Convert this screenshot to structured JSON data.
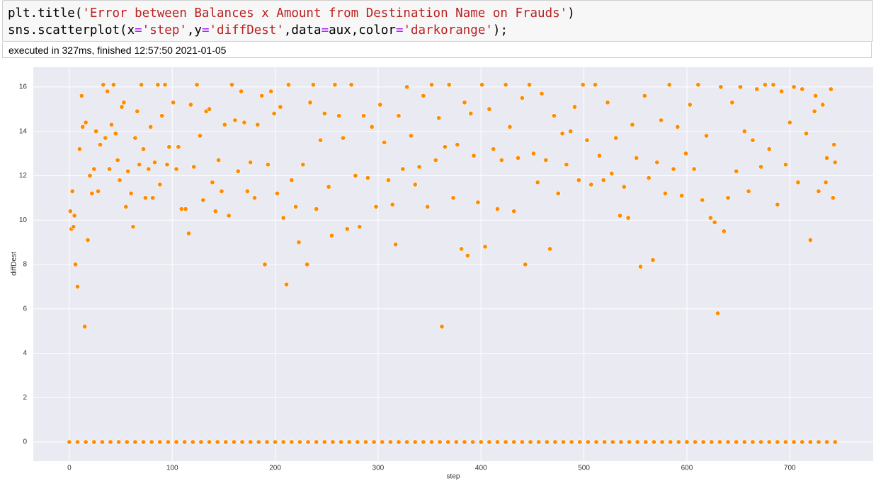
{
  "code": {
    "lines": [
      [
        "plt.title(",
        "'Error between Balances x Amount from Destination Name on Frauds'",
        ")"
      ],
      [
        "sns.scatterplot(x",
        "=",
        "'step'",
        ",y",
        "=",
        "'diffDest'",
        ",data",
        "=",
        "aux,color",
        "=",
        "'darkorange'",
        ");"
      ]
    ]
  },
  "execution": "executed in 327ms, finished 12:57:50 2021-01-05",
  "chart_data": {
    "type": "scatter",
    "x_label": "step",
    "y_label": "diffDest",
    "color": "#ff8c00",
    "grid": true,
    "xlim": [
      -35,
      781
    ],
    "ylim": [
      -0.86,
      16.89
    ],
    "xticks": [
      0,
      100,
      200,
      300,
      400,
      500,
      600,
      700
    ],
    "yticks": [
      0,
      2,
      4,
      6,
      8,
      10,
      12,
      14,
      16
    ],
    "x": [
      1,
      2,
      3,
      4,
      5,
      6,
      8,
      10,
      12,
      13,
      15,
      16,
      18,
      20,
      22,
      24,
      26,
      28,
      30,
      33,
      35,
      37,
      39,
      41,
      43,
      45,
      47,
      49,
      51,
      53,
      55,
      57,
      60,
      62,
      64,
      66,
      68,
      70,
      72,
      74,
      77,
      79,
      81,
      83,
      86,
      88,
      90,
      93,
      95,
      97,
      101,
      104,
      106,
      109,
      113,
      116,
      118,
      121,
      124,
      127,
      130,
      133,
      136,
      139,
      142,
      145,
      148,
      151,
      155,
      158,
      161,
      164,
      167,
      170,
      173,
      176,
      180,
      183,
      187,
      190,
      193,
      196,
      199,
      202,
      205,
      208,
      211,
      213,
      216,
      220,
      223,
      227,
      231,
      234,
      237,
      240,
      244,
      248,
      252,
      255,
      258,
      262,
      266,
      270,
      274,
      278,
      282,
      286,
      290,
      294,
      298,
      302,
      306,
      310,
      314,
      317,
      320,
      324,
      328,
      332,
      336,
      340,
      344,
      348,
      352,
      356,
      359,
      362,
      365,
      369,
      373,
      377,
      381,
      384,
      387,
      390,
      393,
      397,
      401,
      404,
      408,
      412,
      416,
      420,
      424,
      428,
      432,
      436,
      440,
      443,
      447,
      451,
      455,
      459,
      463,
      467,
      471,
      475,
      479,
      483,
      487,
      491,
      495,
      499,
      503,
      507,
      511,
      515,
      519,
      523,
      527,
      531,
      535,
      539,
      543,
      547,
      551,
      555,
      559,
      563,
      567,
      571,
      575,
      579,
      583,
      587,
      591,
      595,
      599,
      603,
      607,
      611,
      615,
      619,
      623,
      627,
      630,
      633,
      636,
      640,
      644,
      648,
      652,
      656,
      660,
      664,
      668,
      672,
      676,
      680,
      684,
      688,
      692,
      696,
      700,
      704,
      708,
      712,
      716,
      720,
      724,
      728,
      732,
      736,
      740,
      742,
      743,
      744,
      725,
      735,
      0,
      8,
      16,
      24,
      32,
      40,
      48,
      56,
      64,
      72,
      80,
      88,
      96,
      104,
      112,
      120,
      128,
      136,
      144,
      152,
      160,
      168,
      176,
      184,
      192,
      200,
      208,
      216,
      224,
      232,
      240,
      248,
      256,
      264,
      272,
      280,
      288,
      296,
      304,
      312,
      320,
      328,
      336,
      344,
      352,
      360,
      368,
      376,
      384,
      392,
      400,
      408,
      416,
      424,
      432,
      440,
      448,
      456,
      464,
      472,
      480,
      488,
      496,
      504,
      512,
      520,
      528,
      536,
      544,
      552,
      560,
      568,
      576,
      584,
      592,
      600,
      608,
      616,
      624,
      632,
      640,
      648,
      656,
      664,
      672,
      680,
      688,
      696,
      704,
      712,
      720,
      728,
      736,
      744
    ],
    "values": [
      10.4,
      9.6,
      11.3,
      9.7,
      10.2,
      8.0,
      7.0,
      13.2,
      15.6,
      14.2,
      5.2,
      14.4,
      9.1,
      12.0,
      11.2,
      12.3,
      14.0,
      11.3,
      13.4,
      16.1,
      13.7,
      15.8,
      12.3,
      14.3,
      16.1,
      13.9,
      12.7,
      11.8,
      15.1,
      15.3,
      10.6,
      12.2,
      11.2,
      9.7,
      13.7,
      14.9,
      12.5,
      16.1,
      13.2,
      11.0,
      12.3,
      14.2,
      11.0,
      12.6,
      16.1,
      11.6,
      14.7,
      16.1,
      12.5,
      13.3,
      15.3,
      12.3,
      13.3,
      10.5,
      10.5,
      9.4,
      15.2,
      12.4,
      16.1,
      13.8,
      10.9,
      14.9,
      15.0,
      11.7,
      10.4,
      12.7,
      11.3,
      14.3,
      10.2,
      16.1,
      14.5,
      12.2,
      15.8,
      14.4,
      11.3,
      12.6,
      11.0,
      14.3,
      15.6,
      8.0,
      12.5,
      15.8,
      14.8,
      11.2,
      15.1,
      10.1,
      7.1,
      16.1,
      11.8,
      10.6,
      9.0,
      12.5,
      8.0,
      15.3,
      16.1,
      10.5,
      13.6,
      14.8,
      11.5,
      9.3,
      16.1,
      14.7,
      13.7,
      9.6,
      16.1,
      12.0,
      9.7,
      14.7,
      11.9,
      14.2,
      10.6,
      15.2,
      13.5,
      11.8,
      10.7,
      8.9,
      14.7,
      12.3,
      16.0,
      13.8,
      11.6,
      12.4,
      15.6,
      10.6,
      16.1,
      12.7,
      14.6,
      5.2,
      13.3,
      16.1,
      11.0,
      13.4,
      8.7,
      15.3,
      8.4,
      14.8,
      12.9,
      10.8,
      16.1,
      8.8,
      15.0,
      13.2,
      10.5,
      12.7,
      16.1,
      14.2,
      10.4,
      12.8,
      15.5,
      8.0,
      16.1,
      13.0,
      11.7,
      15.7,
      12.7,
      8.7,
      14.7,
      11.2,
      13.9,
      12.5,
      14.0,
      15.1,
      11.8,
      16.1,
      13.6,
      11.6,
      16.1,
      12.9,
      11.8,
      15.3,
      12.1,
      13.7,
      10.2,
      11.5,
      10.1,
      14.3,
      12.8,
      7.9,
      15.6,
      11.9,
      8.2,
      12.6,
      14.5,
      11.2,
      16.1,
      12.3,
      14.2,
      11.1,
      13.0,
      15.2,
      12.3,
      16.1,
      10.9,
      13.8,
      10.1,
      9.9,
      5.8,
      16.0,
      9.5,
      11.0,
      15.3,
      12.2,
      16.0,
      14.0,
      11.3,
      13.6,
      15.9,
      12.4,
      16.1,
      13.2,
      16.1,
      10.7,
      15.8,
      12.5,
      14.4,
      16.0,
      11.7,
      15.9,
      13.9,
      9.1,
      14.9,
      11.3,
      15.2,
      12.8,
      15.9,
      11.0,
      13.4,
      12.6,
      15.6,
      11.7,
      0,
      0,
      0,
      0,
      0,
      0,
      0,
      0,
      0,
      0,
      0,
      0,
      0,
      0,
      0,
      0,
      0,
      0,
      0,
      0,
      0,
      0,
      0,
      0,
      0,
      0,
      0,
      0,
      0,
      0,
      0,
      0,
      0,
      0,
      0,
      0,
      0,
      0,
      0,
      0,
      0,
      0,
      0,
      0,
      0,
      0,
      0,
      0,
      0,
      0,
      0,
      0,
      0,
      0,
      0,
      0,
      0,
      0,
      0,
      0,
      0,
      0,
      0,
      0,
      0,
      0,
      0,
      0,
      0,
      0,
      0,
      0,
      0,
      0,
      0,
      0,
      0,
      0,
      0,
      0,
      0,
      0,
      0,
      0,
      0,
      0,
      0,
      0,
      0,
      0,
      0,
      0,
      0,
      0
    ]
  }
}
